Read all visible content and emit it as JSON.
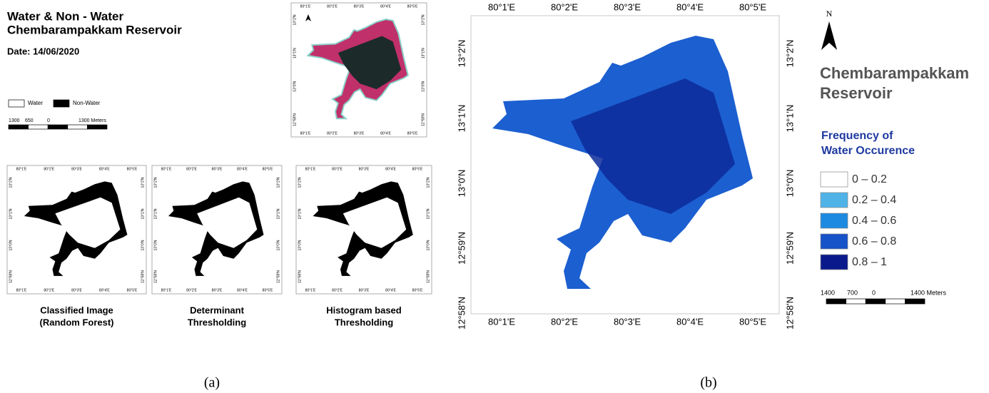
{
  "panel_a": {
    "title": [
      "Water & Non - Water",
      "Chembarampakkam Reservoir"
    ],
    "date": "Date: 14/06/2020",
    "legend": [
      {
        "label": "Water",
        "color": "#ffffff"
      },
      {
        "label": "Non-Water",
        "color": "#000000"
      }
    ],
    "scale": [
      "1300",
      "650",
      "0",
      "1300 Meters"
    ],
    "lon": [
      "80°1'E",
      "80°2'E",
      "80°3'E",
      "80°4'E",
      "80°5'E"
    ],
    "lat": [
      "13°2'N",
      "13°1'N",
      "13°0'N",
      "12°59'N"
    ],
    "captions": [
      [
        "Classified Image",
        "(Random Forest)"
      ],
      [
        "Determinant",
        "Thresholding"
      ],
      [
        "Histogram based",
        "Thresholding"
      ]
    ],
    "label": "(a)"
  },
  "panel_b": {
    "lon": [
      "80°1'E",
      "80°2'E",
      "80°3'E",
      "80°4'E",
      "80°5'E"
    ],
    "lat": [
      "13°2'N",
      "13°1'N",
      "13°0'N",
      "12°59'N",
      "12°58'N"
    ],
    "north": "N",
    "title": [
      "Chembarampakkam",
      "Reservoir"
    ],
    "legend_title": [
      "Frequency of",
      "Water Occurence"
    ],
    "classes": [
      {
        "label": "0 – 0.2",
        "color": "#ffffff"
      },
      {
        "label": "0.2 – 0.4",
        "color": "#4fb3e8"
      },
      {
        "label": "0.4 – 0.6",
        "color": "#1c8ae0"
      },
      {
        "label": "0.6 – 0.8",
        "color": "#1652c8"
      },
      {
        "label": "0.8 – 1",
        "color": "#0a1a8c"
      }
    ],
    "scale": [
      "1400",
      "700",
      "0",
      "1400 Meters"
    ],
    "label": "(b)"
  }
}
